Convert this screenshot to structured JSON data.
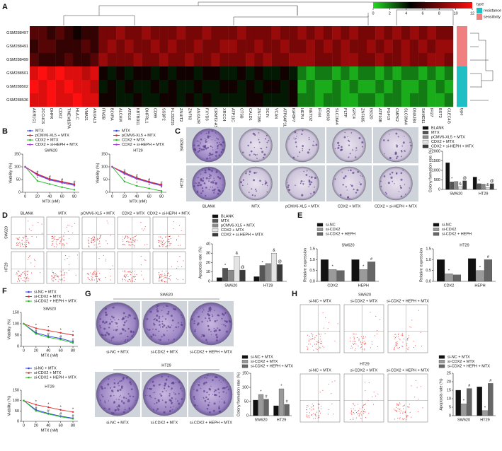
{
  "chart_data": [
    {
      "type": "heatmap",
      "panel": "A",
      "rows": [
        "GSM288497",
        "GSM288491",
        "GSM288499",
        "GSM288501",
        "GSM288502",
        "GSM288536"
      ],
      "columns": [
        "AKR1C1",
        "ZCCHC6",
        "DHFR",
        "CDX2",
        "TMEM167A",
        "HLA-C",
        "VMA21",
        "ANXA13",
        "ITM2B",
        "BLVRA",
        "ALCAM",
        "ATG10",
        "KBTBD11",
        "DHFRL1",
        "CD99",
        "SSBP2",
        "FLJ32255",
        "ZNHIT2",
        "ZNF83",
        "ANXA2R",
        "FXYD3",
        "CRMT2-AS1",
        "XRCC4",
        "ATP11C",
        "CTSB",
        "CALD1",
        "ZNF399",
        "SCIN",
        "VCAN",
        "ATP6AP1L",
        "IGFBP7",
        "HEPH",
        "NETO2",
        "IFI44",
        "DDX60",
        "SLC16A4",
        "PLTP",
        "GPC4",
        "ZNF695",
        "ISG20",
        "ATP10B",
        "FGF19",
        "CMPK2",
        "SLC39A4",
        "DNAJB4",
        "SAMD11",
        "IFI27",
        "BST2",
        "CLEC4G"
      ],
      "values": [
        [
          7,
          7,
          6,
          7,
          6,
          5,
          6,
          6,
          8,
          8,
          9,
          8,
          8,
          9,
          8,
          8,
          8,
          9,
          8,
          8,
          9,
          8,
          8,
          8,
          9,
          8,
          8,
          8,
          9,
          8,
          8,
          9,
          8,
          9,
          8,
          9,
          8,
          9,
          8,
          8,
          9,
          8,
          9,
          8,
          9,
          8,
          9,
          8,
          8
        ],
        [
          6,
          7,
          7,
          6,
          6,
          6,
          7,
          6,
          8,
          9,
          8,
          9,
          8,
          8,
          9,
          8,
          9,
          8,
          8,
          9,
          8,
          8,
          9,
          9,
          8,
          8,
          9,
          8,
          8,
          9,
          8,
          8,
          9,
          8,
          9,
          8,
          9,
          8,
          8,
          9,
          8,
          9,
          8,
          9,
          8,
          9,
          8,
          9,
          9
        ],
        [
          7,
          6,
          6,
          6,
          7,
          6,
          6,
          7,
          9,
          8,
          8,
          8,
          9,
          8,
          8,
          9,
          8,
          8,
          9,
          8,
          8,
          9,
          8,
          8,
          8,
          9,
          8,
          9,
          8,
          8,
          9,
          9,
          9,
          8,
          8,
          8,
          9,
          9,
          8,
          8,
          9,
          8,
          8,
          9,
          8,
          8,
          9,
          9,
          8
        ],
        [
          11,
          12,
          11,
          12,
          11,
          11,
          10,
          11,
          5,
          4,
          5,
          4,
          5,
          5,
          4,
          5,
          4,
          5,
          5,
          4,
          5,
          5,
          4,
          4,
          5,
          4,
          5,
          4,
          4,
          5,
          4,
          2,
          1,
          2,
          2,
          1,
          2,
          1,
          2,
          2,
          1,
          2,
          1,
          2,
          2,
          1,
          2,
          1,
          2
        ],
        [
          12,
          11,
          12,
          11,
          12,
          11,
          11,
          10,
          4,
          5,
          4,
          5,
          4,
          4,
          5,
          4,
          5,
          4,
          4,
          5,
          4,
          4,
          5,
          5,
          4,
          5,
          4,
          5,
          5,
          4,
          5,
          1,
          2,
          1,
          1,
          2,
          1,
          2,
          1,
          1,
          2,
          1,
          2,
          1,
          1,
          2,
          1,
          2,
          1
        ],
        [
          11,
          11,
          12,
          11,
          11,
          12,
          11,
          11,
          5,
          5,
          4,
          4,
          5,
          4,
          4,
          5,
          5,
          4,
          5,
          4,
          5,
          4,
          4,
          4,
          4,
          5,
          5,
          4,
          4,
          4,
          5,
          2,
          2,
          1,
          2,
          2,
          1,
          1,
          2,
          2,
          1,
          2,
          2,
          1,
          2,
          2,
          1,
          1,
          2
        ]
      ],
      "clim": [
        0,
        12
      ],
      "colorbar_ticks": [
        0,
        2,
        4,
        6,
        8,
        10,
        12
      ],
      "colormap": [
        "#22dd22",
        "#000000",
        "#ff1010"
      ],
      "colormap_stops": [
        0,
        4.5,
        12
      ],
      "row_type": [
        "sensitivity",
        "sensitivity",
        "sensitivity",
        "resistance",
        "resistance",
        "resistance"
      ],
      "type_label": "type",
      "type_legend": [
        {
          "name": "resistance",
          "color": "#1fbfc4"
        },
        {
          "name": "sensitivity",
          "color": "#f08080"
        }
      ]
    },
    {
      "type": "line",
      "panel": "B",
      "title": "SW620",
      "xlabel": "MTX (nM)",
      "ylabel": "Viability (%)",
      "x": [
        0,
        20,
        40,
        60,
        80
      ],
      "xlim": [
        -4,
        88
      ],
      "xticks": [
        0,
        20,
        40,
        60,
        80
      ],
      "ylim": [
        0,
        150
      ],
      "yticks": [
        0,
        50,
        100,
        150
      ],
      "series": [
        {
          "name": "MTX",
          "color": "#2b3fd6",
          "values": [
            100,
            70,
            50,
            40,
            30
          ]
        },
        {
          "name": "pCMV6-XL5 + MTX",
          "color": "#e02a2a",
          "values": [
            100,
            72,
            53,
            42,
            32
          ]
        },
        {
          "name": "CDX2 + MTX",
          "color": "#22b822",
          "values": [
            100,
            45,
            32,
            20,
            10
          ],
          "annotations": [
            null,
            "*",
            "*",
            "*",
            "*"
          ]
        },
        {
          "name": "CDX2 + si-HEPH + MTX",
          "color": "#a23cc8",
          "values": [
            100,
            67,
            48,
            37,
            27
          ],
          "annotations": [
            null,
            "#",
            "#",
            "#",
            "#"
          ]
        }
      ]
    },
    {
      "type": "line",
      "title": "HT29",
      "xlabel": "MTX (nM)",
      "ylabel": "Viability (%)",
      "x": [
        0,
        20,
        40,
        60,
        80
      ],
      "xlim": [
        -4,
        88
      ],
      "xticks": [
        0,
        20,
        40,
        60,
        80
      ],
      "ylim": [
        0,
        150
      ],
      "yticks": [
        0,
        50,
        100,
        150
      ],
      "series": [
        {
          "name": "MTX",
          "color": "#2b3fd6",
          "values": [
            100,
            75,
            55,
            40,
            28
          ]
        },
        {
          "name": "pCMV6-XL5 + MTX",
          "color": "#e02a2a",
          "values": [
            100,
            78,
            57,
            42,
            30
          ]
        },
        {
          "name": "CDX2 + MTX",
          "color": "#22b822",
          "values": [
            100,
            42,
            25,
            15,
            5
          ],
          "annotations": [
            null,
            "*",
            "*",
            "*",
            "*"
          ]
        },
        {
          "name": "CDX2 + si-HEPH + MTX",
          "color": "#a23cc8",
          "values": [
            100,
            72,
            52,
            38,
            25
          ],
          "annotations": [
            null,
            "#",
            "#",
            "#",
            "#"
          ]
        }
      ]
    },
    {
      "type": "bar",
      "ylabel": "Colony formation rate (%)",
      "categories": [
        "SW620",
        "HT29"
      ],
      "ylim": [
        0,
        2000
      ],
      "yticks": [
        0,
        500,
        1000,
        1500,
        2000
      ],
      "series": [
        {
          "name": "BLANK",
          "color": "#111111",
          "values": [
            1400,
            650
          ]
        },
        {
          "name": "MTX",
          "color": "#555555",
          "values": [
            400,
            300
          ],
          "annotations": [
            "*",
            "*"
          ]
        },
        {
          "name": "pCMV6-XL5 + MTX",
          "color": "#8a8a8a",
          "values": [
            420,
            280
          ]
        },
        {
          "name": "CDX2 + MTX",
          "color": "#e4e4e4",
          "values": [
            150,
            100
          ],
          "annotations": [
            "&",
            "&"
          ]
        },
        {
          "name": "CDX2 + si-HEPH + MTX",
          "color": "#3a3a3a",
          "values": [
            450,
            300
          ],
          "annotations": [
            "@",
            "@"
          ]
        }
      ]
    },
    {
      "type": "bar",
      "ylabel": "Apoptosis rate (%)",
      "categories": [
        "SW620",
        "HT29"
      ],
      "ylim": [
        0,
        40
      ],
      "yticks": [
        0,
        10,
        20,
        30,
        40
      ],
      "series": [
        {
          "name": "BLANK",
          "color": "#111111",
          "values": [
            4,
            5
          ]
        },
        {
          "name": "MTX",
          "color": "#555555",
          "values": [
            14,
            17
          ],
          "annotations": [
            "*",
            "*"
          ]
        },
        {
          "name": "pCMV6-XL5 + MTX",
          "color": "#8a8a8a",
          "values": [
            12,
            19
          ]
        },
        {
          "name": "CDX2 + MTX",
          "color": "#e4e4e4",
          "values": [
            27,
            30
          ],
          "annotations": [
            "&",
            "&"
          ]
        },
        {
          "name": "CDX2 + si-HEPH + MTX",
          "color": "#3a3a3a",
          "values": [
            12,
            18
          ],
          "annotations": [
            "@",
            "@"
          ]
        }
      ]
    },
    {
      "type": "bar",
      "panel": "E",
      "title": "SW620",
      "ylabel": "Relative expression",
      "categories": [
        "CDX2",
        "HEPH"
      ],
      "ylim": [
        0,
        1.5
      ],
      "yticks": [
        {
          "value": 0,
          "label": "0.0"
        },
        {
          "value": 0.5,
          "label": "0.5"
        },
        {
          "value": 1,
          "label": "1.0"
        },
        {
          "value": 1.5,
          "label": "1.5"
        }
      ],
      "series": [
        {
          "name": "si-NC",
          "color": "#111111",
          "values": [
            1.0,
            1.0
          ]
        },
        {
          "name": "si-CDX2",
          "color": "#9a9a9a",
          "values": [
            0.55,
            0.55
          ],
          "annotations": [
            "*",
            "*"
          ]
        },
        {
          "name": "si-CDX2 + HEPH",
          "color": "#666666",
          "values": [
            0.5,
            0.9
          ],
          "annotations": [
            null,
            "#"
          ]
        }
      ]
    },
    {
      "type": "bar",
      "title": "HT29",
      "ylabel": "Relative expression",
      "categories": [
        "CDX2",
        "HEPH"
      ],
      "ylim": [
        0,
        1.5
      ],
      "yticks": [
        {
          "value": 0,
          "label": "0.0"
        },
        {
          "value": 0.5,
          "label": "0.5"
        },
        {
          "value": 1,
          "label": "1.0"
        },
        {
          "value": 1.5,
          "label": "1.5"
        }
      ],
      "series": [
        {
          "name": "si-NC",
          "color": "#111111",
          "values": [
            1.0,
            1.05
          ]
        },
        {
          "name": "si-CDX2",
          "color": "#9a9a9a",
          "values": [
            0.35,
            0.5
          ],
          "annotations": [
            "*",
            "*"
          ]
        },
        {
          "name": "si-CDX2 + HEPH",
          "color": "#666666",
          "values": [
            0.3,
            1.0
          ],
          "annotations": [
            null,
            "#"
          ]
        }
      ]
    },
    {
      "type": "line",
      "panel": "F",
      "title": "SW620",
      "xlabel": "MTX (nM)",
      "ylabel": "Viability (%)",
      "x": [
        0,
        20,
        40,
        60,
        80
      ],
      "xlim": [
        -4,
        88
      ],
      "xticks": [
        0,
        20,
        40,
        60,
        80
      ],
      "ylim": [
        0,
        150
      ],
      "yticks": [
        0,
        50,
        100,
        150
      ],
      "series": [
        {
          "name": "si-NC + MTX",
          "color": "#2b3fd6",
          "values": [
            100,
            60,
            45,
            35,
            20
          ]
        },
        {
          "name": "si-CDX2 + MTX",
          "color": "#e02a2a",
          "values": [
            100,
            80,
            70,
            60,
            50
          ],
          "annotations": [
            null,
            "*",
            "*",
            "*",
            "*"
          ]
        },
        {
          "name": "si-CDX2 + HEPH + MTX",
          "color": "#22b822",
          "values": [
            100,
            55,
            40,
            30,
            15
          ],
          "annotations": [
            null,
            "#",
            "#",
            "#",
            "#"
          ]
        }
      ]
    },
    {
      "type": "line",
      "title": "HT29",
      "xlabel": "MTX (nM)",
      "ylabel": "Viability (%)",
      "x": [
        0,
        20,
        40,
        60,
        80
      ],
      "xlim": [
        -4,
        88
      ],
      "xticks": [
        0,
        20,
        40,
        60,
        80
      ],
      "ylim": [
        0,
        150
      ],
      "yticks": [
        0,
        50,
        100,
        150
      ],
      "series": [
        {
          "name": "si-NC + MTX",
          "color": "#2b3fd6",
          "values": [
            100,
            55,
            38,
            25,
            15
          ]
        },
        {
          "name": "si-CDX2 + MTX",
          "color": "#e02a2a",
          "values": [
            100,
            80,
            68,
            55,
            45
          ],
          "annotations": [
            null,
            "*",
            "*",
            "*",
            "*"
          ]
        },
        {
          "name": "si-CDX2 + HEPH + MTX",
          "color": "#22b822",
          "values": [
            100,
            50,
            35,
            22,
            12
          ],
          "annotations": [
            null,
            "#",
            "#",
            "#",
            "#"
          ]
        }
      ]
    },
    {
      "type": "bar",
      "ylabel": "Colony formation rate (%)",
      "categories": [
        "SW620",
        "HT29"
      ],
      "ylim": [
        0,
        150
      ],
      "yticks": [
        0,
        50,
        100,
        150
      ],
      "series": [
        {
          "name": "si-NC + MTX",
          "color": "#111111",
          "values": [
            55,
            35
          ]
        },
        {
          "name": "si-CDX2 + MTX",
          "color": "#9a9a9a",
          "values": [
            75,
            95
          ],
          "annotations": [
            "*",
            "*"
          ]
        },
        {
          "name": "si-CDX2 + HEPH + MTX",
          "color": "#666666",
          "values": [
            58,
            40
          ],
          "annotations": [
            "#",
            "#"
          ]
        }
      ]
    },
    {
      "type": "bar",
      "ylabel": "Apoptosis rate (%)",
      "categories": [
        "SW620",
        "HT29"
      ],
      "ylim": [
        0,
        25
      ],
      "yticks": [
        0,
        5,
        10,
        15,
        20,
        25
      ],
      "series": [
        {
          "name": "si-NC + MTX",
          "color": "#111111",
          "values": [
            15,
            17
          ]
        },
        {
          "name": "si-CDX2 + MTX",
          "color": "#9a9a9a",
          "values": [
            7,
            3
          ],
          "annotations": [
            "*",
            "*"
          ]
        },
        {
          "name": "si-CDX2 + HEPH + MTX",
          "color": "#666666",
          "values": [
            16,
            19
          ],
          "annotations": [
            "#",
            "#"
          ]
        }
      ]
    }
  ],
  "image_panels": [
    {
      "panel": "C",
      "kind": "plate",
      "rows": [
        "SW620",
        "HT29"
      ],
      "columns": [
        "BLANK",
        "MTX",
        "pCMV6-XL5 + MTX",
        "CDX2 + MTX",
        "CDX2 + si-HEPH + MTX"
      ]
    },
    {
      "panel": "D",
      "kind": "flow",
      "rows": [
        "SW620",
        "HT29"
      ],
      "columns": [
        "BLANK",
        "MTX",
        "pCMV6-XL5 + MTX",
        "CDX2 + MTX",
        "CDX2 + si-HEPH + MTX"
      ]
    },
    {
      "panel": "G",
      "kind": "plate",
      "rows": [
        "SW620",
        "HT29"
      ],
      "columns": [
        "si-NC + MTX",
        "si-CDX2 + MTX",
        "si-CDX2 + HEPH + MTX"
      ]
    },
    {
      "panel": "H",
      "kind": "flow",
      "rows": [
        "SW620",
        "HT29"
      ],
      "columns": [
        "si-NC + MTX",
        "si-CDX2 + MTX",
        "si-CDX2 + HEPH + MTX"
      ]
    }
  ]
}
